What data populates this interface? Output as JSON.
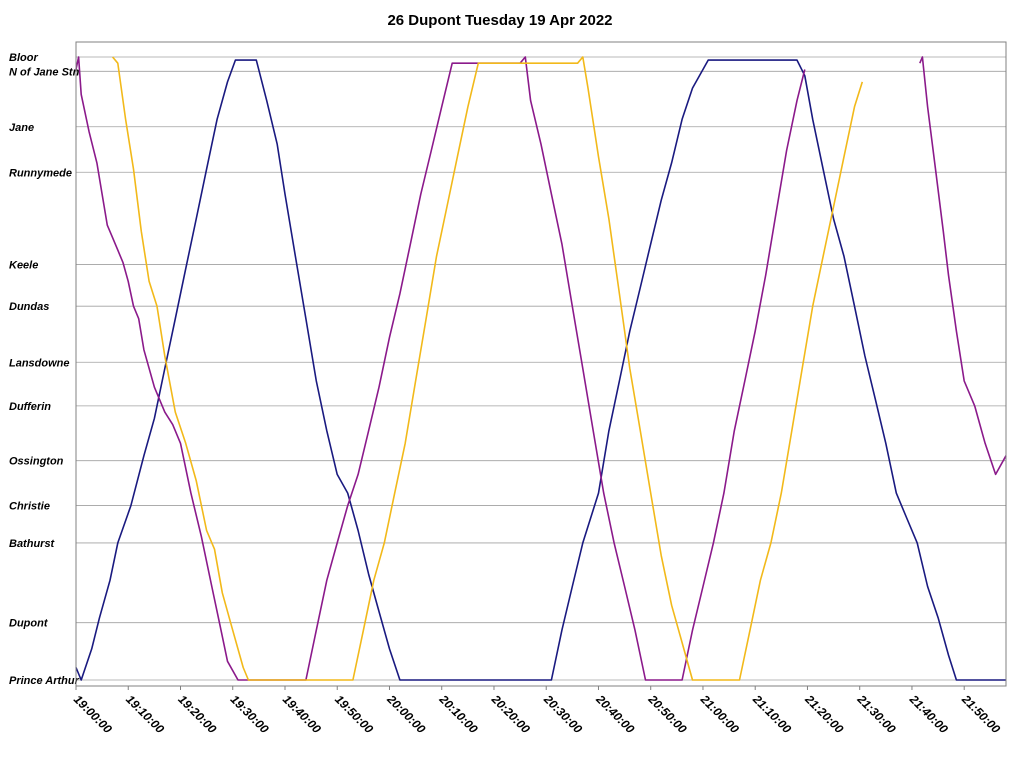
{
  "chart_data": {
    "type": "line",
    "title": "26 Dupont Tuesday 19 Apr 2022",
    "x_range": [
      "19:00:00",
      "21:58:00"
    ],
    "x_ticks": [
      "19:00:00",
      "19:10:00",
      "19:20:00",
      "19:30:00",
      "19:40:00",
      "19:50:00",
      "20:00:00",
      "20:10:00",
      "20:20:00",
      "20:30:00",
      "20:40:00",
      "20:50:00",
      "21:00:00",
      "21:10:00",
      "21:20:00",
      "21:30:00",
      "21:40:00",
      "21:50:00"
    ],
    "stops": [
      {
        "name": "Bloor",
        "pos": 1.0
      },
      {
        "name": "N of Jane Stn",
        "pos": 0.977
      },
      {
        "name": "Jane",
        "pos": 0.888
      },
      {
        "name": "Runnymede",
        "pos": 0.815
      },
      {
        "name": "Keele",
        "pos": 0.667
      },
      {
        "name": "Dundas",
        "pos": 0.6
      },
      {
        "name": "Lansdowne",
        "pos": 0.51
      },
      {
        "name": "Dufferin",
        "pos": 0.44
      },
      {
        "name": "Ossington",
        "pos": 0.352
      },
      {
        "name": "Christie",
        "pos": 0.28
      },
      {
        "name": "Bathurst",
        "pos": 0.22
      },
      {
        "name": "Dupont",
        "pos": 0.092
      },
      {
        "name": "Prince Arthur",
        "pos": 0.0
      }
    ],
    "colors": {
      "navy": "#1a1a80",
      "purple": "#8b1a8b",
      "gold": "#f2b91a"
    },
    "series": [
      {
        "color": "navy",
        "points": [
          [
            "19:00:00",
            0.02
          ],
          [
            "19:01:00",
            0.0
          ],
          [
            "19:03:00",
            0.05
          ],
          [
            "19:04:30",
            0.1
          ],
          [
            "19:06:30",
            0.16
          ],
          [
            "19:08:00",
            0.22
          ],
          [
            "19:10:30",
            0.28
          ],
          [
            "19:13:00",
            0.36
          ],
          [
            "19:15:00",
            0.42
          ],
          [
            "19:17:00",
            0.5
          ],
          [
            "19:19:00",
            0.58
          ],
          [
            "19:21:00",
            0.66
          ],
          [
            "19:23:00",
            0.74
          ],
          [
            "19:25:00",
            0.82
          ],
          [
            "19:27:00",
            0.9
          ],
          [
            "19:29:00",
            0.96
          ],
          [
            "19:30:30",
            0.995
          ],
          [
            "19:34:30",
            0.995
          ],
          [
            "19:36:30",
            0.93
          ],
          [
            "19:38:30",
            0.86
          ],
          [
            "19:40:00",
            0.78
          ],
          [
            "19:42:00",
            0.68
          ],
          [
            "19:44:00",
            0.58
          ],
          [
            "19:46:00",
            0.48
          ],
          [
            "19:48:00",
            0.4
          ],
          [
            "19:50:00",
            0.33
          ],
          [
            "19:52:00",
            0.3
          ],
          [
            "19:54:00",
            0.24
          ],
          [
            "19:56:00",
            0.17
          ],
          [
            "19:58:00",
            0.11
          ],
          [
            "20:00:00",
            0.05
          ],
          [
            "20:02:00",
            0.0
          ],
          [
            "20:31:00",
            0.0
          ],
          [
            "20:33:00",
            0.08
          ],
          [
            "20:35:00",
            0.15
          ],
          [
            "20:37:00",
            0.22
          ],
          [
            "20:40:00",
            0.3
          ],
          [
            "20:42:00",
            0.4
          ],
          [
            "20:44:00",
            0.48
          ],
          [
            "20:46:00",
            0.56
          ],
          [
            "20:48:00",
            0.63
          ],
          [
            "20:50:00",
            0.7
          ],
          [
            "20:52:00",
            0.77
          ],
          [
            "20:54:00",
            0.83
          ],
          [
            "20:56:00",
            0.9
          ],
          [
            "20:58:00",
            0.95
          ],
          [
            "21:01:00",
            0.995
          ],
          [
            "21:18:00",
            0.995
          ],
          [
            "21:19:30",
            0.97
          ],
          [
            "21:21:00",
            0.9
          ],
          [
            "21:23:00",
            0.82
          ],
          [
            "21:25:00",
            0.74
          ],
          [
            "21:27:00",
            0.68
          ],
          [
            "21:29:00",
            0.6
          ],
          [
            "21:31:00",
            0.52
          ],
          [
            "21:33:00",
            0.45
          ],
          [
            "21:35:00",
            0.38
          ],
          [
            "21:37:00",
            0.3
          ],
          [
            "21:39:00",
            0.26
          ],
          [
            "21:41:00",
            0.22
          ],
          [
            "21:43:00",
            0.15
          ],
          [
            "21:45:00",
            0.1
          ],
          [
            "21:47:00",
            0.04
          ],
          [
            "21:48:30",
            0.0
          ],
          [
            "21:58:00",
            0.0
          ]
        ]
      },
      {
        "color": "purple",
        "points": [
          [
            "19:00:00",
            0.98
          ],
          [
            "19:00:30",
            1.0
          ],
          [
            "19:01:00",
            0.94
          ],
          [
            "19:02:30",
            0.88
          ],
          [
            "19:04:00",
            0.83
          ],
          [
            "19:05:00",
            0.78
          ],
          [
            "19:06:00",
            0.73
          ],
          [
            "19:07:00",
            0.71
          ],
          [
            "19:08:00",
            0.69
          ],
          [
            "19:09:00",
            0.67
          ],
          [
            "19:10:00",
            0.64
          ],
          [
            "19:11:00",
            0.6
          ],
          [
            "19:12:00",
            0.58
          ],
          [
            "19:13:00",
            0.53
          ],
          [
            "19:15:00",
            0.47
          ],
          [
            "19:17:00",
            0.43
          ],
          [
            "19:18:30",
            0.41
          ],
          [
            "19:20:00",
            0.38
          ],
          [
            "19:22:00",
            0.3
          ],
          [
            "19:24:00",
            0.23
          ],
          [
            "19:26:00",
            0.15
          ],
          [
            "19:27:30",
            0.09
          ],
          [
            "19:29:00",
            0.03
          ],
          [
            "19:31:00",
            0.0
          ],
          [
            "19:44:00",
            0.0
          ],
          [
            "19:46:00",
            0.08
          ],
          [
            "19:48:00",
            0.16
          ],
          [
            "19:50:00",
            0.22
          ],
          [
            "19:52:00",
            0.28
          ],
          [
            "19:54:00",
            0.33
          ],
          [
            "19:56:00",
            0.4
          ],
          [
            "19:58:00",
            0.47
          ],
          [
            "20:00:00",
            0.55
          ],
          [
            "20:02:00",
            0.62
          ],
          [
            "20:04:00",
            0.7
          ],
          [
            "20:06:00",
            0.78
          ],
          [
            "20:08:00",
            0.85
          ],
          [
            "20:10:00",
            0.92
          ],
          [
            "20:12:00",
            0.99
          ],
          [
            "20:25:00",
            0.99
          ],
          [
            "20:26:00",
            1.0
          ],
          [
            "20:27:00",
            0.93
          ],
          [
            "20:29:00",
            0.86
          ],
          [
            "20:31:00",
            0.78
          ],
          [
            "20:33:00",
            0.7
          ],
          [
            "20:35:00",
            0.6
          ],
          [
            "20:37:00",
            0.5
          ],
          [
            "20:39:00",
            0.4
          ],
          [
            "20:41:00",
            0.3
          ],
          [
            "20:43:00",
            0.22
          ],
          [
            "20:45:00",
            0.15
          ],
          [
            "20:47:00",
            0.08
          ],
          [
            "20:49:00",
            0.0
          ],
          [
            "20:56:00",
            0.0
          ],
          [
            "20:58:00",
            0.08
          ],
          [
            "21:00:00",
            0.15
          ],
          [
            "21:02:00",
            0.22
          ],
          [
            "21:04:00",
            0.3
          ],
          [
            "21:06:00",
            0.4
          ],
          [
            "21:08:00",
            0.48
          ],
          [
            "21:10:00",
            0.56
          ],
          [
            "21:12:00",
            0.65
          ],
          [
            "21:14:00",
            0.75
          ],
          [
            "21:16:00",
            0.85
          ],
          [
            "21:18:00",
            0.93
          ],
          [
            "21:19:30",
            0.98
          ]
        ]
      },
      {
        "color": "purple",
        "points": [
          [
            "21:41:30",
            0.99
          ],
          [
            "21:42:00",
            1.0
          ],
          [
            "21:43:00",
            0.92
          ],
          [
            "21:44:30",
            0.82
          ],
          [
            "21:46:00",
            0.72
          ],
          [
            "21:47:00",
            0.65
          ],
          [
            "21:48:30",
            0.56
          ],
          [
            "21:50:00",
            0.48
          ],
          [
            "21:52:00",
            0.44
          ],
          [
            "21:54:00",
            0.38
          ],
          [
            "21:56:00",
            0.33
          ],
          [
            "21:58:00",
            0.36
          ]
        ]
      },
      {
        "color": "gold",
        "points": [
          [
            "19:07:00",
            1.0
          ],
          [
            "19:08:00",
            0.99
          ],
          [
            "19:09:30",
            0.9
          ],
          [
            "19:11:00",
            0.82
          ],
          [
            "19:12:30",
            0.72
          ],
          [
            "19:14:00",
            0.64
          ],
          [
            "19:15:30",
            0.6
          ],
          [
            "19:17:00",
            0.52
          ],
          [
            "19:19:00",
            0.43
          ],
          [
            "19:21:00",
            0.38
          ],
          [
            "19:23:00",
            0.32
          ],
          [
            "19:25:00",
            0.24
          ],
          [
            "19:26:30",
            0.21
          ],
          [
            "19:28:00",
            0.14
          ],
          [
            "19:30:00",
            0.08
          ],
          [
            "19:32:00",
            0.02
          ],
          [
            "19:33:00",
            0.0
          ],
          [
            "19:53:00",
            0.0
          ],
          [
            "19:55:00",
            0.08
          ],
          [
            "19:57:00",
            0.16
          ],
          [
            "19:59:00",
            0.22
          ],
          [
            "20:01:00",
            0.3
          ],
          [
            "20:03:00",
            0.38
          ],
          [
            "20:05:00",
            0.48
          ],
          [
            "20:07:00",
            0.58
          ],
          [
            "20:09:00",
            0.68
          ],
          [
            "20:11:00",
            0.76
          ],
          [
            "20:13:00",
            0.84
          ],
          [
            "20:15:00",
            0.92
          ],
          [
            "20:17:00",
            0.99
          ],
          [
            "20:36:00",
            0.99
          ],
          [
            "20:37:00",
            1.0
          ],
          [
            "20:38:00",
            0.95
          ],
          [
            "20:40:00",
            0.84
          ],
          [
            "20:42:00",
            0.74
          ],
          [
            "20:44:00",
            0.62
          ],
          [
            "20:46:00",
            0.5
          ],
          [
            "20:48:00",
            0.4
          ],
          [
            "20:50:00",
            0.3
          ],
          [
            "20:52:00",
            0.2
          ],
          [
            "20:54:00",
            0.12
          ],
          [
            "20:56:00",
            0.06
          ],
          [
            "20:58:00",
            0.0
          ],
          [
            "21:07:00",
            0.0
          ],
          [
            "21:09:00",
            0.08
          ],
          [
            "21:11:00",
            0.16
          ],
          [
            "21:13:00",
            0.22
          ],
          [
            "21:15:00",
            0.3
          ],
          [
            "21:17:00",
            0.4
          ],
          [
            "21:19:00",
            0.5
          ],
          [
            "21:21:00",
            0.6
          ],
          [
            "21:23:00",
            0.68
          ],
          [
            "21:25:00",
            0.76
          ],
          [
            "21:27:00",
            0.84
          ],
          [
            "21:29:00",
            0.92
          ],
          [
            "21:30:30",
            0.96
          ]
        ]
      }
    ]
  }
}
